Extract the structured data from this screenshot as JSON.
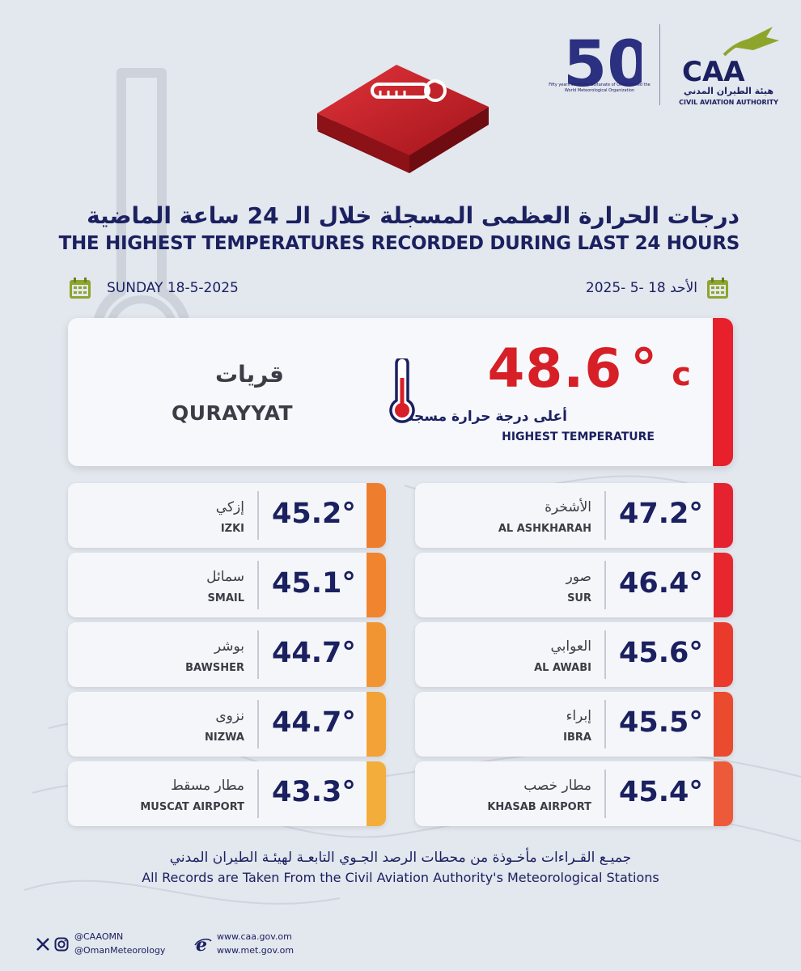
{
  "header": {
    "title_ar": "درجات الحرارة العظمى المسجلة خلال الـ 24 ساعة الماضية",
    "title_en": "THE HIGHEST TEMPERATURES RECORDED DURING LAST 24 HOURS",
    "logos": {
      "fifty_number": "50",
      "fifty_caption": "Fifty years since the Sultanate of Oman joined the World Meteorological Organization",
      "caa_acronym": "CAA",
      "caa_name_ar": "هيئة الطيران المدني",
      "caa_name_en": "CIVIL AVIATION AUTHORITY"
    }
  },
  "date": {
    "en": "SUNDAY 18-5-2025",
    "ar": "الأحد  18 -5 -2025"
  },
  "highest": {
    "value": "48.6",
    "degree": "°",
    "unit": "c",
    "label_ar": "أعلى درجة حرارة مسجلة",
    "label_en": "HIGHEST TEMPERATURE",
    "city_ar": "قريات",
    "city_en": "QURAYYAT",
    "accent": "#e8202c"
  },
  "stations_right": [
    {
      "temp": "47.2°",
      "name_ar": "الأشخرة",
      "name_en": "AL ASHKHARAH",
      "accent": "#e52330"
    },
    {
      "temp": "46.4°",
      "name_ar": "صور",
      "name_en": "SUR",
      "accent": "#e6282e"
    },
    {
      "temp": "45.6°",
      "name_ar": "العوابي",
      "name_en": "AL AWABI",
      "accent": "#e93a2c"
    },
    {
      "temp": "45.5°",
      "name_ar": "إبراء",
      "name_en": "IBRA",
      "accent": "#ea4a2d"
    },
    {
      "temp": "45.4°",
      "name_ar": "مطار خصب",
      "name_en": "KHASAB AIRPORT",
      "accent": "#ec5a3a"
    }
  ],
  "stations_left": [
    {
      "temp": "45.2°",
      "name_ar": "إزكي",
      "name_en": "IZKI",
      "accent": "#ef7d2e"
    },
    {
      "temp": "45.1°",
      "name_ar": "سمائل",
      "name_en": "SMAIL",
      "accent": "#f0842f"
    },
    {
      "temp": "44.7°",
      "name_ar": "بوشر",
      "name_en": "BAWSHER",
      "accent": "#f19532"
    },
    {
      "temp": "44.7°",
      "name_ar": "نزوى",
      "name_en": "NIZWA",
      "accent": "#f2a236"
    },
    {
      "temp": "43.3°",
      "name_ar": "مطار مسقط",
      "name_en": "MUSCAT AIRPORT",
      "accent": "#f3ad3a"
    }
  ],
  "footer": {
    "note_ar": "جميـع القـراءات مأخـوذة من محطات الرصد الجـوي التابعـة لهيئـة الطيران المدني",
    "note_en": "All Records are Taken From the Civil Aviation Authority's Meteorological Stations",
    "handle_caa": "@CAAOMN",
    "handle_met": "@OmanMeteorology",
    "web_caa": "www.caa.gov.om",
    "web_met": "www.met.gov.om"
  },
  "icons": [
    "thermometer-icon",
    "calendar-icon",
    "x-icon",
    "instagram-icon",
    "web-icon"
  ]
}
